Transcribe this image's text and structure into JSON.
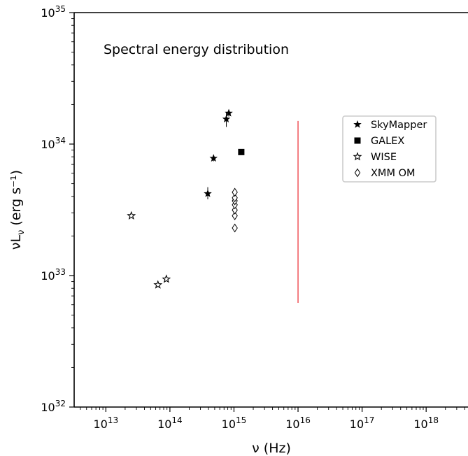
{
  "chart_data": {
    "type": "scatter",
    "title": "Spectral energy distribution",
    "xlabel": "ν (Hz)",
    "ylabel": "νL_ν (erg s⁻¹)",
    "xscale": "log",
    "yscale": "log",
    "xlim": [
      3200000000000.0,
      4.5e+18
    ],
    "ylim": [
      1e+32,
      1e+35
    ],
    "x_ticks": [
      {
        "exp": 13,
        "label": "10",
        "sup": "13"
      },
      {
        "exp": 14,
        "label": "10",
        "sup": "14"
      },
      {
        "exp": 15,
        "label": "10",
        "sup": "15"
      },
      {
        "exp": 16,
        "label": "10",
        "sup": "16"
      },
      {
        "exp": 17,
        "label": "10",
        "sup": "17"
      },
      {
        "exp": 18,
        "label": "10",
        "sup": "18"
      }
    ],
    "y_ticks": [
      {
        "exp": 32,
        "label": "10",
        "sup": "32"
      },
      {
        "exp": 33,
        "label": "10",
        "sup": "33"
      },
      {
        "exp": 34,
        "label": "10",
        "sup": "34"
      },
      {
        "exp": 35,
        "label": "10",
        "sup": "35"
      }
    ],
    "legend_position": "upper-right",
    "series": [
      {
        "name": "SkyMapper",
        "marker": "star-filled",
        "points": [
          {
            "x": 390000000000000.0,
            "y": 4.2e+33,
            "yerr_lo": 3.8e+33,
            "yerr_hi": 4.7e+33
          },
          {
            "x": 480000000000000.0,
            "y": 7.8e+33,
            "yerr_lo": 7.4e+33,
            "yerr_hi": 8.2e+33
          },
          {
            "x": 760000000000000.0,
            "y": 1.55e+34,
            "yerr_lo": 1.35e+34,
            "yerr_hi": 1.75e+34
          },
          {
            "x": 830000000000000.0,
            "y": 1.72e+34,
            "yerr_lo": 1.62e+34,
            "yerr_hi": 1.82e+34
          }
        ]
      },
      {
        "name": "GALEX",
        "marker": "square-filled",
        "points": [
          {
            "x": 1300000000000000.0,
            "y": 8.7e+33
          }
        ]
      },
      {
        "name": "WISE",
        "marker": "star-open",
        "points": [
          {
            "x": 25000000000000.0,
            "y": 2.85e+33
          },
          {
            "x": 65000000000000.0,
            "y": 8.5e+32
          },
          {
            "x": 88000000000000.0,
            "y": 9.4e+32
          }
        ]
      },
      {
        "name": "XMM OM",
        "marker": "diamond-open",
        "points": [
          {
            "x": 1030000000000000.0,
            "y": 2.3e+33
          },
          {
            "x": 1030000000000000.0,
            "y": 2.85e+33
          },
          {
            "x": 1030000000000000.0,
            "y": 3.15e+33
          },
          {
            "x": 1030000000000000.0,
            "y": 3.45e+33
          },
          {
            "x": 1030000000000000.0,
            "y": 3.7e+33
          },
          {
            "x": 1030000000000000.0,
            "y": 3.9e+33
          },
          {
            "x": 1030000000000000.0,
            "y": 4.3e+33
          }
        ]
      }
    ],
    "vertical_line": {
      "x": 1e+16,
      "y_from": 6.2e+32,
      "y_to": 1.5e+34,
      "color": "#e8141c"
    }
  }
}
